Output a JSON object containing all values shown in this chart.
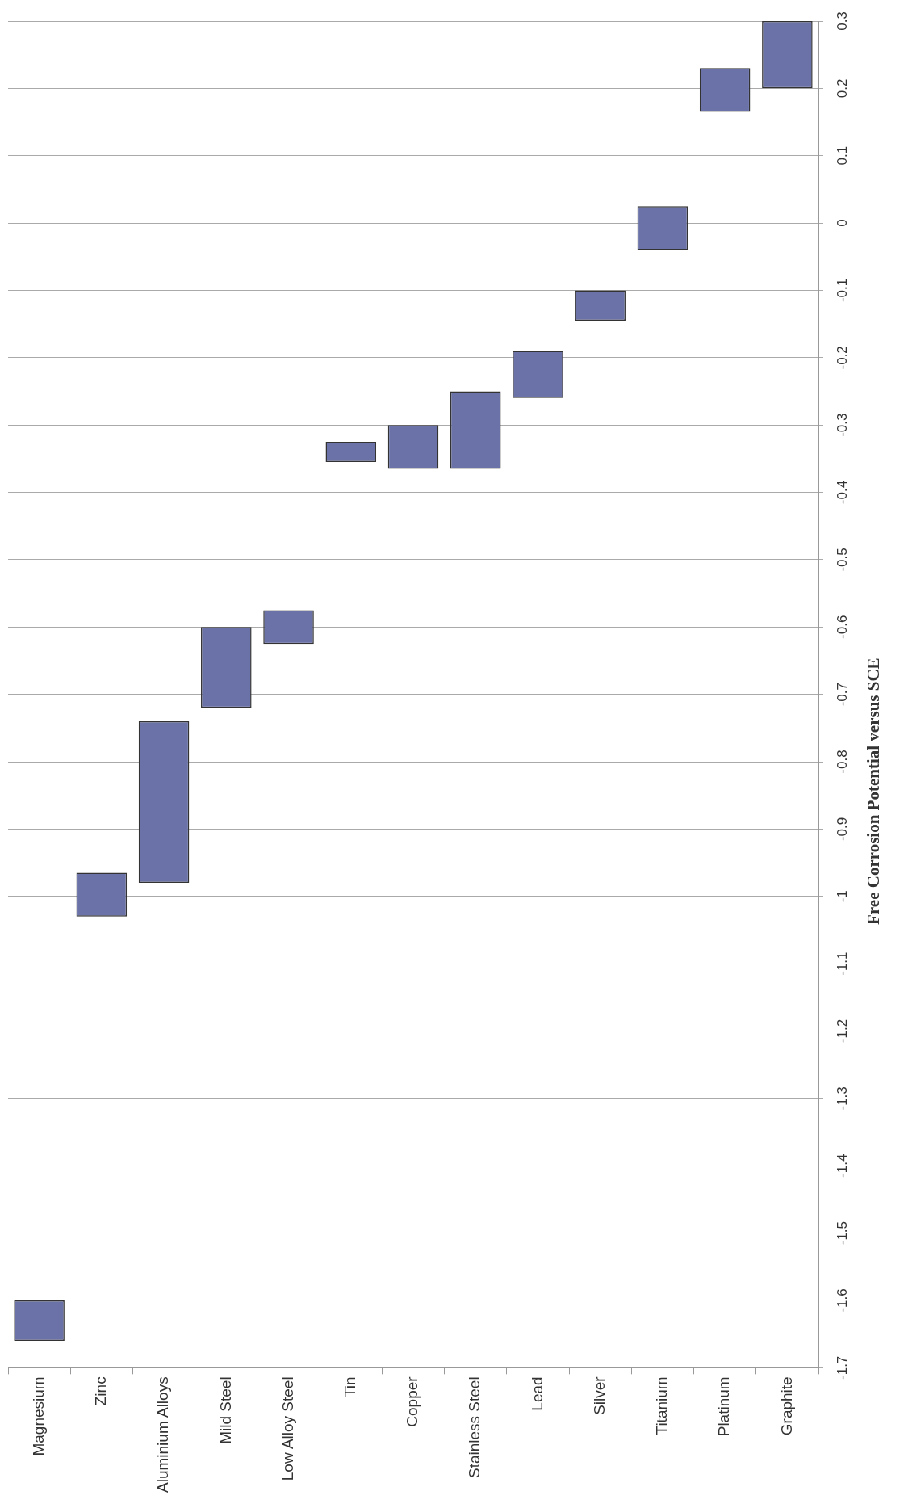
{
  "chart_data": {
    "type": "bar",
    "ylabel": "Free Corrosion Potential versus SCE",
    "categories": [
      "Magnesium",
      "Zinc",
      "Aluminium Alloys",
      "Mild Steel",
      "Low Alloy Steel",
      "Tin",
      "Copper",
      "Stainless Steel",
      "Lead",
      "Silver",
      "Titanium",
      "Platinum",
      "Graphite"
    ],
    "base": [
      -1.66,
      -1.03,
      -0.98,
      -0.72,
      -0.625,
      -0.355,
      -0.365,
      -0.365,
      -0.26,
      -0.145,
      -0.04,
      0.165,
      0.2
    ],
    "values": [
      0.06,
      0.065,
      0.24,
      0.12,
      0.05,
      0.03,
      0.065,
      0.115,
      0.07,
      0.045,
      0.065,
      0.065,
      0.1
    ],
    "color": "#6a72a8",
    "ylim": [
      -1.7,
      0.3
    ],
    "yticks": [
      -1.7,
      -1.6,
      -1.5,
      -1.4,
      -1.3,
      -1.2,
      -1.1,
      -1,
      -0.9,
      -0.8,
      -0.7,
      -0.6,
      -0.5,
      -0.4,
      -0.3,
      -0.2,
      -0.1,
      0,
      0.1,
      0.2,
      0.3
    ],
    "grid": "y",
    "legend": false
  }
}
